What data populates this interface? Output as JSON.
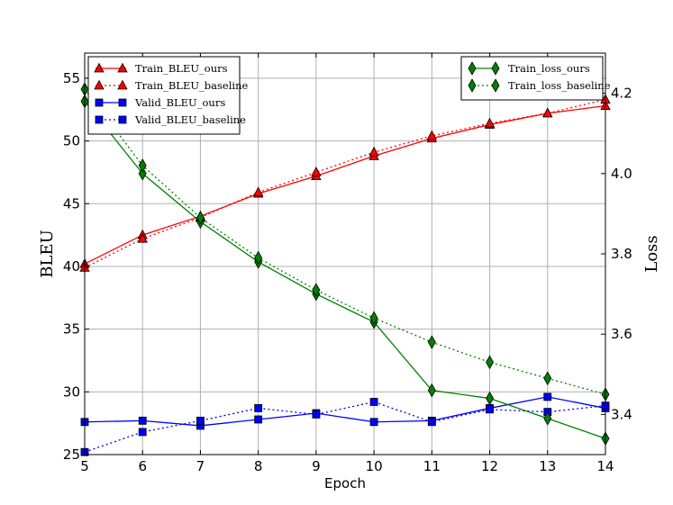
{
  "chart_data": {
    "type": "line",
    "xlabel": "Epoch",
    "ylabel_left": "BLEU",
    "ylabel_right": "Loss",
    "x": [
      5,
      6,
      7,
      8,
      9,
      10,
      11,
      12,
      13,
      14
    ],
    "xlim": [
      5,
      14
    ],
    "ylim_left": [
      25,
      57
    ],
    "ylim_right": [
      3.3,
      4.3
    ],
    "yticks_left": [
      25,
      30,
      35,
      40,
      45,
      50,
      55
    ],
    "yticks_right": [
      3.4,
      3.6,
      3.8,
      4.0,
      4.2
    ],
    "grid": true,
    "series_left": [
      {
        "name": "Train_BLEU_ours",
        "color": "#ff0000",
        "dash": "solid",
        "marker": "triangle",
        "values": [
          40.2,
          42.5,
          44.0,
          45.8,
          47.2,
          48.8,
          50.2,
          51.3,
          52.2,
          52.8
        ]
      },
      {
        "name": "Train_BLEU_baseline",
        "color": "#ff0000",
        "dash": "dotted",
        "marker": "triangle",
        "values": [
          39.9,
          42.2,
          43.9,
          45.9,
          47.5,
          49.1,
          50.4,
          51.4,
          52.2,
          53.3
        ]
      },
      {
        "name": "Valid_BLEU_ours",
        "color": "#0000ff",
        "dash": "solid",
        "marker": "square",
        "values": [
          27.6,
          27.7,
          27.3,
          27.8,
          28.3,
          27.6,
          27.7,
          28.7,
          29.6,
          28.7
        ]
      },
      {
        "name": "Valid_BLEU_baseline",
        "color": "#0000ff",
        "dash": "dotted",
        "marker": "square",
        "values": [
          25.2,
          26.8,
          27.7,
          28.7,
          28.2,
          29.2,
          27.6,
          28.6,
          28.4,
          28.9
        ]
      }
    ],
    "series_right": [
      {
        "name": "Train_loss_ours",
        "color": "#008000",
        "dash": "solid",
        "marker": "diamond",
        "values": [
          4.18,
          4.0,
          3.88,
          3.78,
          3.7,
          3.63,
          3.46,
          3.44,
          3.39,
          3.34
        ]
      },
      {
        "name": "Train_loss_baseline",
        "color": "#008000",
        "dash": "dotted",
        "marker": "diamond",
        "values": [
          4.21,
          4.02,
          3.89,
          3.79,
          3.71,
          3.64,
          3.58,
          3.53,
          3.49,
          3.45
        ]
      }
    ],
    "legend_left_placement": "top-left",
    "legend_right_placement": "top-right"
  }
}
